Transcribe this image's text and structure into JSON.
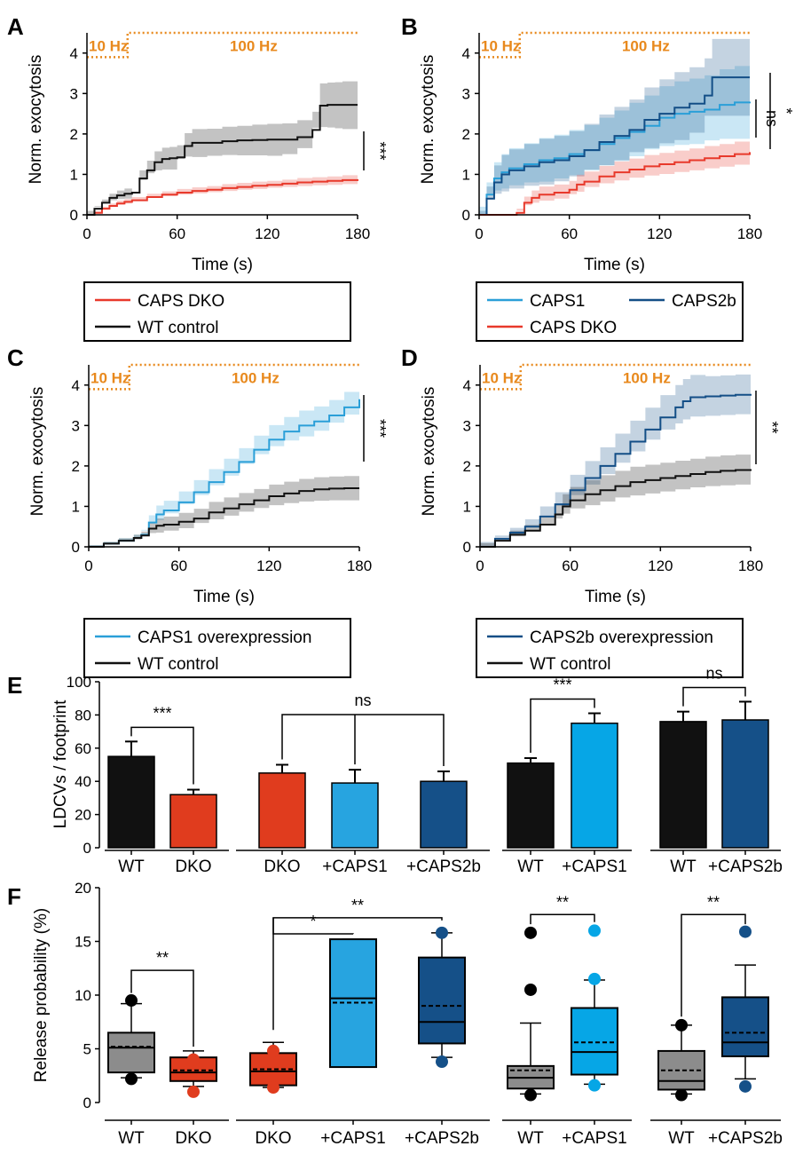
{
  "colors": {
    "red": "#e8392b",
    "black": "#111111",
    "caps1": "#2a9fd8",
    "caps2b": "#134e86",
    "orange": "#e8891d",
    "grey": "#8c8c8c",
    "dko_bar": "#e03c1e",
    "caps1_bar": "#27a4e0",
    "caps2b_bar": "#155088",
    "caps1_bright": "#06a6e6"
  },
  "stim": {
    "low": "10 Hz",
    "high": "100 Hz"
  },
  "chart_data": [
    {
      "panel": "A",
      "type": "line",
      "xlabel": "Time (s)",
      "ylabel": "Norm. exocytosis",
      "xlim": [
        0,
        180
      ],
      "ylim": [
        0,
        4.5
      ],
      "xticks": [
        "0",
        "60",
        "120",
        "180"
      ],
      "yticks": [
        "0",
        "1",
        "2",
        "3",
        "4"
      ],
      "significance": [
        "***"
      ],
      "legend": [
        "CAPS DKO",
        "WT control"
      ],
      "series": [
        {
          "name": "CAPS DKO",
          "color": "red",
          "x": [
            0,
            5,
            10,
            15,
            20,
            25,
            30,
            40,
            50,
            60,
            70,
            80,
            90,
            100,
            110,
            120,
            130,
            140,
            150,
            160,
            170,
            180
          ],
          "y": [
            0,
            0.05,
            0.15,
            0.22,
            0.28,
            0.32,
            0.36,
            0.44,
            0.5,
            0.55,
            0.59,
            0.62,
            0.66,
            0.69,
            0.72,
            0.74,
            0.77,
            0.8,
            0.82,
            0.84,
            0.86,
            0.88
          ],
          "err": [
            0,
            0.03,
            0.05,
            0.06,
            0.07,
            0.07,
            0.08,
            0.08,
            0.08,
            0.09,
            0.09,
            0.09,
            0.1,
            0.1,
            0.1,
            0.1,
            0.1,
            0.11,
            0.11,
            0.11,
            0.12,
            0.12
          ]
        },
        {
          "name": "WT control",
          "color": "black",
          "x": [
            0,
            5,
            10,
            15,
            20,
            25,
            30,
            35,
            40,
            45,
            50,
            55,
            60,
            65,
            70,
            80,
            90,
            100,
            110,
            120,
            130,
            140,
            150,
            155,
            160,
            165,
            170,
            180
          ],
          "y": [
            0,
            0.15,
            0.3,
            0.42,
            0.48,
            0.52,
            0.55,
            0.9,
            1.1,
            1.3,
            1.38,
            1.4,
            1.42,
            1.7,
            1.78,
            1.78,
            1.82,
            1.84,
            1.85,
            1.86,
            1.86,
            1.92,
            2.1,
            2.7,
            2.72,
            2.72,
            2.72,
            2.72
          ],
          "err": [
            0,
            0.05,
            0.08,
            0.1,
            0.12,
            0.13,
            0.15,
            0.2,
            0.24,
            0.27,
            0.28,
            0.28,
            0.3,
            0.32,
            0.34,
            0.35,
            0.36,
            0.36,
            0.38,
            0.39,
            0.4,
            0.42,
            0.45,
            0.55,
            0.55,
            0.56,
            0.58,
            0.6
          ]
        }
      ]
    },
    {
      "panel": "B",
      "type": "line",
      "xlabel": "Time (s)",
      "ylabel": "Norm. exocytosis",
      "xlim": [
        0,
        180
      ],
      "ylim": [
        0,
        4.5
      ],
      "xticks": [
        "0",
        "60",
        "120",
        "180"
      ],
      "yticks": [
        "0",
        "1",
        "2",
        "3",
        "4"
      ],
      "significance": [
        "ns",
        "*"
      ],
      "legend": [
        "CAPS1",
        "CAPS2b",
        "CAPS DKO"
      ],
      "series": [
        {
          "name": "CAPS1",
          "color": "caps1",
          "x": [
            0,
            5,
            10,
            15,
            20,
            30,
            40,
            50,
            60,
            70,
            80,
            90,
            100,
            110,
            120,
            130,
            140,
            150,
            160,
            170,
            180
          ],
          "y": [
            0,
            0.5,
            0.9,
            1.05,
            1.15,
            1.25,
            1.35,
            1.4,
            1.5,
            1.6,
            1.75,
            1.9,
            2.05,
            2.2,
            2.4,
            2.5,
            2.55,
            2.6,
            2.72,
            2.78,
            2.8
          ],
          "err": [
            0,
            0.3,
            0.4,
            0.45,
            0.5,
            0.52,
            0.55,
            0.58,
            0.6,
            0.62,
            0.65,
            0.68,
            0.72,
            0.75,
            0.78,
            0.8,
            0.82,
            0.85,
            0.88,
            0.9,
            0.92
          ]
        },
        {
          "name": "CAPS2b",
          "color": "caps2b",
          "x": [
            0,
            5,
            10,
            15,
            20,
            30,
            40,
            50,
            60,
            70,
            80,
            90,
            100,
            110,
            120,
            130,
            140,
            150,
            155,
            160,
            170,
            180
          ],
          "y": [
            0,
            0.4,
            0.8,
            1.0,
            1.1,
            1.2,
            1.3,
            1.35,
            1.45,
            1.6,
            1.8,
            1.95,
            2.1,
            2.35,
            2.5,
            2.65,
            2.75,
            2.95,
            3.4,
            3.4,
            3.4,
            3.4
          ],
          "err": [
            0,
            0.3,
            0.42,
            0.48,
            0.52,
            0.55,
            0.58,
            0.6,
            0.62,
            0.65,
            0.68,
            0.72,
            0.75,
            0.8,
            0.85,
            0.88,
            0.9,
            0.92,
            0.95,
            0.95,
            0.95,
            0.95
          ]
        },
        {
          "name": "CAPS DKO",
          "color": "red",
          "x": [
            0,
            10,
            20,
            25,
            30,
            35,
            40,
            50,
            60,
            65,
            70,
            80,
            90,
            100,
            110,
            120,
            130,
            140,
            150,
            160,
            170,
            180
          ],
          "y": [
            0,
            0,
            0,
            0.05,
            0.3,
            0.42,
            0.5,
            0.55,
            0.62,
            0.75,
            0.82,
            0.95,
            1.05,
            1.12,
            1.2,
            1.25,
            1.3,
            1.35,
            1.4,
            1.45,
            1.5,
            1.55
          ],
          "err": [
            0,
            0,
            0,
            0.05,
            0.15,
            0.18,
            0.2,
            0.2,
            0.22,
            0.24,
            0.25,
            0.26,
            0.27,
            0.27,
            0.28,
            0.28,
            0.29,
            0.29,
            0.3,
            0.3,
            0.31,
            0.31
          ]
        }
      ]
    },
    {
      "panel": "C",
      "type": "line",
      "xlabel": "Time (s)",
      "ylabel": "Norm. exocytosis",
      "xlim": [
        0,
        180
      ],
      "ylim": [
        0,
        4.5
      ],
      "xticks": [
        "0",
        "60",
        "120",
        "180"
      ],
      "yticks": [
        "0",
        "1",
        "2",
        "3",
        "4"
      ],
      "significance": [
        "***"
      ],
      "legend": [
        "CAPS1 overexpression",
        "WT control"
      ],
      "series": [
        {
          "name": "CAPS1 overexpression",
          "color": "caps1",
          "x": [
            0,
            10,
            20,
            30,
            35,
            40,
            45,
            50,
            60,
            70,
            80,
            90,
            100,
            110,
            120,
            130,
            140,
            150,
            160,
            170,
            180
          ],
          "y": [
            0,
            0.08,
            0.15,
            0.22,
            0.3,
            0.6,
            0.8,
            0.9,
            1.1,
            1.35,
            1.6,
            1.85,
            2.1,
            2.4,
            2.65,
            2.85,
            3.0,
            3.1,
            3.25,
            3.45,
            3.65
          ],
          "err": [
            0,
            0.04,
            0.06,
            0.08,
            0.1,
            0.18,
            0.22,
            0.24,
            0.27,
            0.3,
            0.32,
            0.33,
            0.34,
            0.35,
            0.36,
            0.36,
            0.37,
            0.37,
            0.38,
            0.38,
            0.38
          ]
        },
        {
          "name": "WT control",
          "color": "black",
          "x": [
            0,
            10,
            20,
            30,
            35,
            40,
            45,
            50,
            60,
            70,
            80,
            90,
            100,
            110,
            120,
            130,
            140,
            150,
            160,
            170,
            180
          ],
          "y": [
            0,
            0.08,
            0.15,
            0.22,
            0.28,
            0.45,
            0.52,
            0.55,
            0.62,
            0.7,
            0.85,
            0.95,
            1.05,
            1.15,
            1.25,
            1.32,
            1.38,
            1.42,
            1.44,
            1.45,
            1.45
          ],
          "err": [
            0,
            0.04,
            0.06,
            0.08,
            0.1,
            0.15,
            0.18,
            0.2,
            0.22,
            0.24,
            0.26,
            0.27,
            0.28,
            0.28,
            0.29,
            0.29,
            0.3,
            0.3,
            0.3,
            0.3,
            0.3
          ]
        }
      ]
    },
    {
      "panel": "D",
      "type": "line",
      "xlabel": "Time (s)",
      "ylabel": "Norm. exocytosis",
      "xlim": [
        0,
        180
      ],
      "ylim": [
        0,
        4.5
      ],
      "xticks": [
        "0",
        "60",
        "120",
        "180"
      ],
      "yticks": [
        "0",
        "1",
        "2",
        "3",
        "4"
      ],
      "significance": [
        "**"
      ],
      "legend": [
        "CAPS2b overexpression",
        "WT control"
      ],
      "series": [
        {
          "name": "CAPS2b overexpression",
          "color": "caps2b",
          "x": [
            0,
            10,
            20,
            30,
            40,
            50,
            60,
            70,
            80,
            90,
            100,
            110,
            120,
            130,
            135,
            140,
            150,
            160,
            170,
            180
          ],
          "y": [
            0,
            0.2,
            0.35,
            0.5,
            0.75,
            1.05,
            1.4,
            1.7,
            2.0,
            2.3,
            2.6,
            2.9,
            3.2,
            3.45,
            3.6,
            3.7,
            3.72,
            3.74,
            3.76,
            3.78
          ],
          "err": [
            0,
            0.08,
            0.12,
            0.18,
            0.25,
            0.3,
            0.38,
            0.42,
            0.46,
            0.5,
            0.52,
            0.54,
            0.55,
            0.55,
            0.55,
            0.55,
            0.5,
            0.5,
            0.5,
            0.5
          ]
        },
        {
          "name": "WT control",
          "color": "black",
          "x": [
            0,
            10,
            20,
            30,
            40,
            50,
            55,
            60,
            70,
            80,
            90,
            100,
            110,
            120,
            130,
            140,
            150,
            160,
            170,
            180
          ],
          "y": [
            0,
            0.15,
            0.3,
            0.4,
            0.55,
            0.8,
            1.0,
            1.15,
            1.3,
            1.4,
            1.5,
            1.6,
            1.65,
            1.7,
            1.75,
            1.8,
            1.85,
            1.88,
            1.9,
            1.92
          ],
          "err": [
            0,
            0.06,
            0.1,
            0.14,
            0.18,
            0.25,
            0.3,
            0.33,
            0.35,
            0.37,
            0.38,
            0.38,
            0.38,
            0.38,
            0.38,
            0.38,
            0.38,
            0.38,
            0.38,
            0.38
          ]
        }
      ]
    },
    {
      "panel": "E",
      "type": "bar",
      "ylabel": "LDCVs / footprint",
      "ylim": [
        0,
        100
      ],
      "yticks": [
        "0",
        "20",
        "40",
        "60",
        "80",
        "100"
      ],
      "groups": [
        {
          "categories": [
            "WT",
            "DKO"
          ],
          "values": [
            55,
            32
          ],
          "err": [
            9,
            3
          ],
          "colors": [
            "black",
            "dko_bar"
          ],
          "significance": "***"
        },
        {
          "categories": [
            "DKO",
            "+CAPS1",
            "+CAPS2b"
          ],
          "values": [
            45,
            39,
            40
          ],
          "err": [
            5,
            8,
            6
          ],
          "colors": [
            "dko_bar",
            "caps1_bar",
            "caps2b_bar"
          ],
          "significance": "ns"
        },
        {
          "categories": [
            "WT",
            "+CAPS1"
          ],
          "values": [
            51,
            75
          ],
          "err": [
            3,
            6
          ],
          "colors": [
            "black",
            "caps1_bright"
          ],
          "significance": "***"
        },
        {
          "categories": [
            "WT",
            "+CAPS2b"
          ],
          "values": [
            76,
            77
          ],
          "err": [
            6,
            11
          ],
          "colors": [
            "black",
            "caps2b_bar"
          ],
          "significance": "ns"
        }
      ]
    },
    {
      "panel": "F",
      "type": "box",
      "ylabel": "Release probability (%)",
      "ylim": [
        0,
        20
      ],
      "yticks": [
        "0",
        "5",
        "10",
        "15",
        "20"
      ],
      "groups": [
        {
          "categories": [
            "WT",
            "DKO"
          ],
          "colors": [
            "grey",
            "dko_bar"
          ],
          "significance": [
            "**"
          ],
          "boxes": [
            {
              "q1": 2.8,
              "median": 5.1,
              "q3": 6.5,
              "mean": 5.2,
              "wlo": 2.3,
              "whi": 9.2,
              "outliers": [
                9.5,
                2.2
              ]
            },
            {
              "q1": 2.0,
              "median": 2.8,
              "q3": 4.2,
              "mean": 3.0,
              "wlo": 1.5,
              "whi": 4.8,
              "outliers": [
                4.0,
                1.0
              ]
            }
          ]
        },
        {
          "categories": [
            "DKO",
            "+CAPS1",
            "+CAPS2b"
          ],
          "colors": [
            "dko_bar",
            "caps1_bar",
            "caps2b_bar"
          ],
          "significance": [
            "*",
            "**"
          ],
          "boxes": [
            {
              "q1": 1.6,
              "median": 2.9,
              "q3": 4.6,
              "mean": 3.1,
              "wlo": 1.4,
              "whi": 5.6,
              "outliers": [
                4.8,
                1.4
              ]
            },
            {
              "q1": 3.3,
              "median": 9.7,
              "q3": 15.2,
              "mean": 9.3,
              "wlo": 3.3,
              "whi": 15.2,
              "outliers": []
            },
            {
              "q1": 5.5,
              "median": 7.5,
              "q3": 13.5,
              "mean": 9.0,
              "wlo": 4.2,
              "whi": 15.8,
              "outliers": [
                15.8,
                3.8
              ]
            }
          ]
        },
        {
          "categories": [
            "WT",
            "+CAPS1"
          ],
          "colors": [
            "grey",
            "caps1_bright"
          ],
          "significance": [
            "**"
          ],
          "boxes": [
            {
              "q1": 1.3,
              "median": 2.3,
              "q3": 3.4,
              "mean": 3.0,
              "wlo": 0.8,
              "whi": 7.4,
              "outliers": [
                15.8,
                10.5,
                0.7
              ]
            },
            {
              "q1": 2.6,
              "median": 4.7,
              "q3": 8.8,
              "mean": 5.6,
              "wlo": 1.7,
              "whi": 11.4,
              "outliers": [
                16.0,
                11.5,
                1.6
              ]
            }
          ]
        },
        {
          "categories": [
            "WT",
            "+CAPS2b"
          ],
          "colors": [
            "grey",
            "caps2b_bar"
          ],
          "significance": [
            "**"
          ],
          "boxes": [
            {
              "q1": 1.2,
              "median": 2.0,
              "q3": 4.8,
              "mean": 3.0,
              "wlo": 0.8,
              "whi": 7.2,
              "outliers": [
                7.2,
                0.7
              ]
            },
            {
              "q1": 4.3,
              "median": 5.6,
              "q3": 9.8,
              "mean": 6.5,
              "wlo": 2.2,
              "whi": 12.8,
              "outliers": [
                15.9,
                1.5
              ]
            }
          ]
        }
      ]
    }
  ]
}
